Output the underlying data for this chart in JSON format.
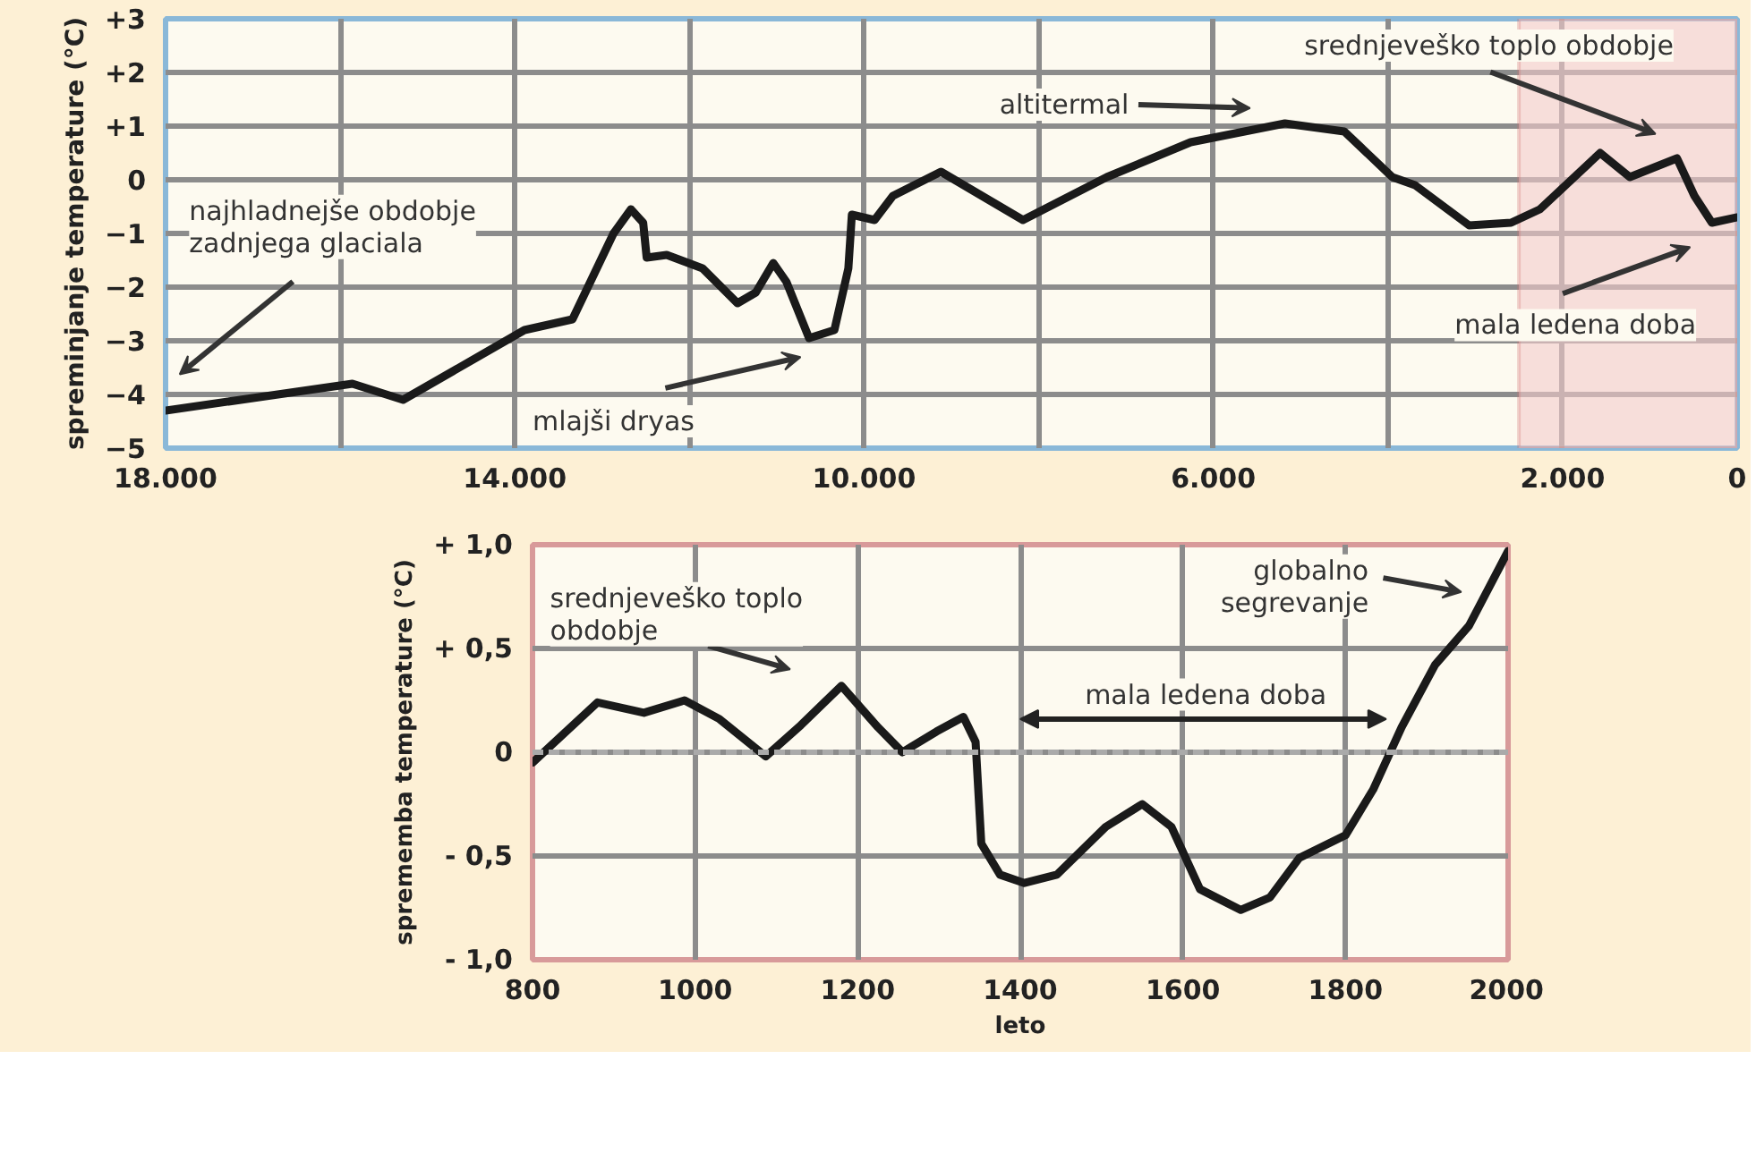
{
  "chart_data": [
    {
      "type": "line",
      "ylabel": "spreminjanje temperature (°C)",
      "x": [
        18000,
        15860,
        15280,
        13890,
        13340,
        12870,
        12670,
        12530,
        12490,
        12260,
        11850,
        11450,
        11240,
        11040,
        10890,
        10630,
        10340,
        10180,
        10140,
        9880,
        9670,
        9120,
        8180,
        7220,
        6260,
        5180,
        4500,
        3950,
        3690,
        3070,
        2590,
        2260,
        1570,
        1230,
        690,
        490,
        290,
        0
      ],
      "series": [
        {
          "color": "#1a1a1a",
          "values": [
            -4.3,
            -3.8,
            -4.1,
            -2.8,
            -2.6,
            -1.0,
            -0.55,
            -0.8,
            -1.45,
            -1.4,
            -1.65,
            -2.3,
            -2.1,
            -1.55,
            -1.9,
            -2.95,
            -2.8,
            -1.65,
            -0.65,
            -0.75,
            -0.3,
            0.15,
            -0.75,
            0.05,
            0.7,
            1.05,
            0.9,
            0.05,
            -0.1,
            -0.85,
            -0.8,
            -0.55,
            0.5,
            0.05,
            0.4,
            -0.3,
            -0.8,
            -0.7
          ]
        }
      ],
      "xlim": [
        18000,
        0
      ],
      "ylim": [
        -5,
        3
      ],
      "xticks": [
        {
          "value": 18000,
          "label": "18.000"
        },
        {
          "value": 16000,
          "label": null
        },
        {
          "value": 14000,
          "label": "14.000"
        },
        {
          "value": 12000,
          "label": null
        },
        {
          "value": 10000,
          "label": "10.000"
        },
        {
          "value": 8000,
          "label": null
        },
        {
          "value": 6000,
          "label": "6.000"
        },
        {
          "value": 4000,
          "label": null
        },
        {
          "value": 2000,
          "label": "2.000"
        },
        0
      ],
      "yticks": [
        {
          "value": 3,
          "label": "+3"
        },
        {
          "value": 2,
          "label": "+2"
        },
        {
          "value": 1,
          "label": "+1"
        },
        0,
        -1,
        -2,
        -3,
        -4,
        -5
      ],
      "grid": true,
      "line_style": "solid",
      "bands": [
        {
          "axis": "x",
          "from": 2500,
          "to": 0,
          "color": "#f4cccc"
        }
      ],
      "annotations": [
        "najhladnejše obdobje\nzadnjega glaciala",
        "mlajši dryas",
        "altitermal",
        "srednjeveško toplo obdobje",
        "mala ledena doba"
      ]
    },
    {
      "type": "line",
      "xlabel": "leto",
      "ylabel": "sprememba temperature (°C)",
      "x": [
        800,
        880,
        937,
        987,
        1030,
        1087,
        1130,
        1180,
        1225,
        1255,
        1297,
        1330,
        1345,
        1352,
        1375,
        1405,
        1445,
        1505,
        1550,
        1586,
        1621,
        1671,
        1707,
        1743,
        1800,
        1834,
        1869,
        1910,
        1952,
        2000
      ],
      "series": [
        {
          "color": "#1a1a1a",
          "values": [
            -0.05,
            0.24,
            0.19,
            0.25,
            0.16,
            -0.02,
            0.13,
            0.32,
            0.12,
            0.0,
            0.1,
            0.17,
            0.05,
            -0.44,
            -0.59,
            -0.63,
            -0.59,
            -0.36,
            -0.25,
            -0.36,
            -0.66,
            -0.76,
            -0.7,
            -0.51,
            -0.4,
            -0.18,
            0.12,
            0.42,
            0.61,
            0.97
          ]
        }
      ],
      "xlim": [
        800,
        2000
      ],
      "ylim": [
        -1,
        1
      ],
      "xticks": [
        800,
        1000,
        1200,
        1400,
        1600,
        1800,
        2000
      ],
      "yticks": [
        {
          "value": 1,
          "label": "+ 1,0"
        },
        {
          "value": 0.5,
          "label": "+ 0,5"
        },
        0,
        {
          "value": -0.5,
          "label": "- 0,5"
        },
        {
          "value": -1,
          "label": "- 1,0"
        }
      ],
      "grid": true,
      "line_style": "solid",
      "ref_lines": [
        {
          "axis": "y",
          "value": 0,
          "color": "#aaaaaa",
          "line_style": "dashed"
        }
      ],
      "annotations": [
        "srednjeveško toplo\nobdobje",
        "globalno\nsegrevanje",
        "mala ledena doba"
      ]
    }
  ]
}
